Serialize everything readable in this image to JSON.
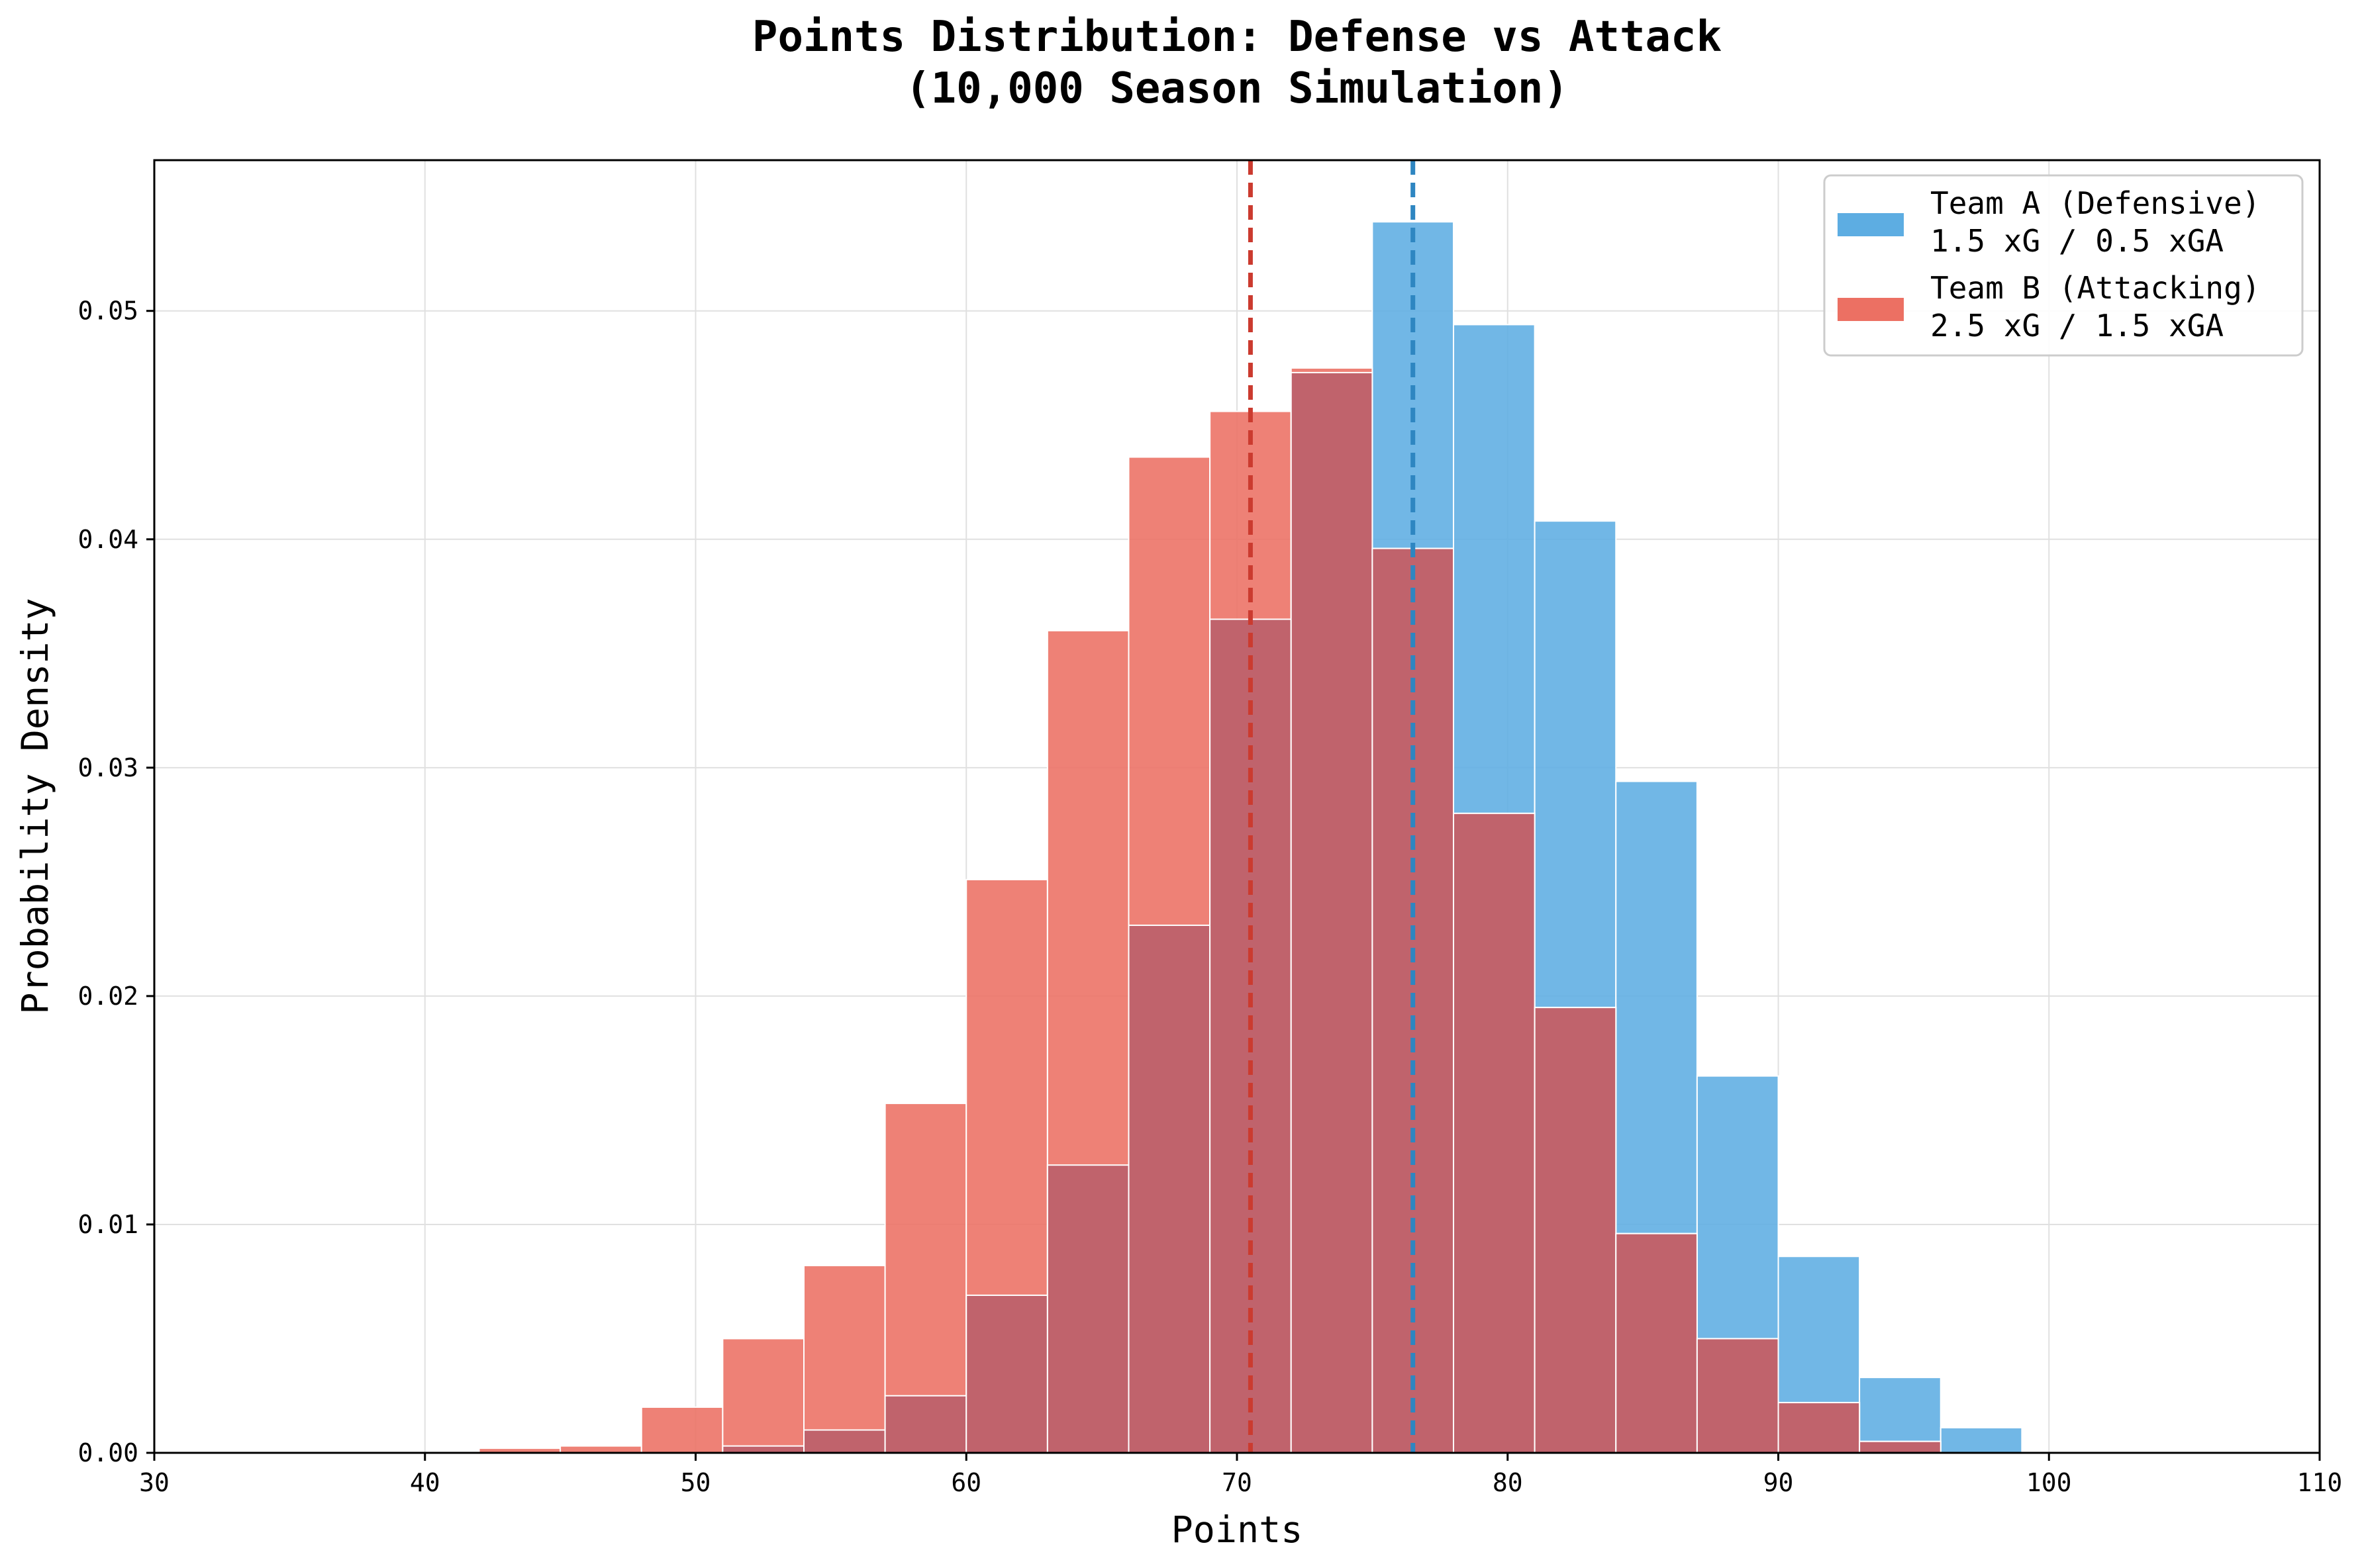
{
  "colors": {
    "team_a": "#5dade2",
    "team_b": "#ec7063",
    "overlap": "#c0636c",
    "mean_a": "#2e86c1",
    "mean_b": "#cb3b2f",
    "grid": "#e0e0e0",
    "background": "#ffffff"
  },
  "chart_data": {
    "type": "bar",
    "title": "Points Distribution: Defense vs Attack",
    "subtitle": "(10,000 Season Simulation)",
    "xlabel": "Points",
    "ylabel": "Probability Density",
    "xlim": [
      30,
      110
    ],
    "ylim": [
      0,
      0.0566
    ],
    "grid": true,
    "legend_position": "top-right",
    "x_ticks": [
      30,
      40,
      50,
      60,
      70,
      80,
      90,
      100,
      110
    ],
    "x_tick_labels": [
      "30",
      "40",
      "50",
      "60",
      "70",
      "80",
      "90",
      "100",
      "110"
    ],
    "y_ticks": [
      0,
      0.01,
      0.02,
      0.03,
      0.04,
      0.05
    ],
    "y_tick_labels": [
      "0.00",
      "0.01",
      "0.02",
      "0.03",
      "0.04",
      "0.05"
    ],
    "series": [
      {
        "name": "Team A (Defensive)",
        "detail": "1.5 xG / 0.5 xGA",
        "bin_width": 3,
        "bin_edges_start": [
          42,
          45,
          48,
          51,
          54,
          57,
          60,
          63,
          66,
          69,
          72,
          75,
          78,
          81,
          84,
          87,
          90,
          93,
          96
        ],
        "values": [
          0.0,
          0.0,
          0.0,
          0.0003,
          0.001,
          0.0025,
          0.0069,
          0.0126,
          0.0231,
          0.0365,
          0.0473,
          0.0539,
          0.0494,
          0.0408,
          0.0294,
          0.0165,
          0.0086,
          0.0033,
          0.0011
        ],
        "mean": 76.5
      },
      {
        "name": "Team B (Attacking)",
        "detail": "2.5 xG / 1.5 xGA",
        "bin_width": 3,
        "bin_edges_start": [
          42,
          45,
          48,
          51,
          54,
          57,
          60,
          63,
          66,
          69,
          72,
          75,
          78,
          81,
          84,
          87,
          90,
          93,
          96
        ],
        "values": [
          0.0002,
          0.0003,
          0.002,
          0.005,
          0.0082,
          0.0153,
          0.0251,
          0.036,
          0.0436,
          0.0456,
          0.0475,
          0.0396,
          0.028,
          0.0195,
          0.0096,
          0.005,
          0.0022,
          0.0005,
          0.0
        ],
        "mean": 70.5
      }
    ]
  }
}
